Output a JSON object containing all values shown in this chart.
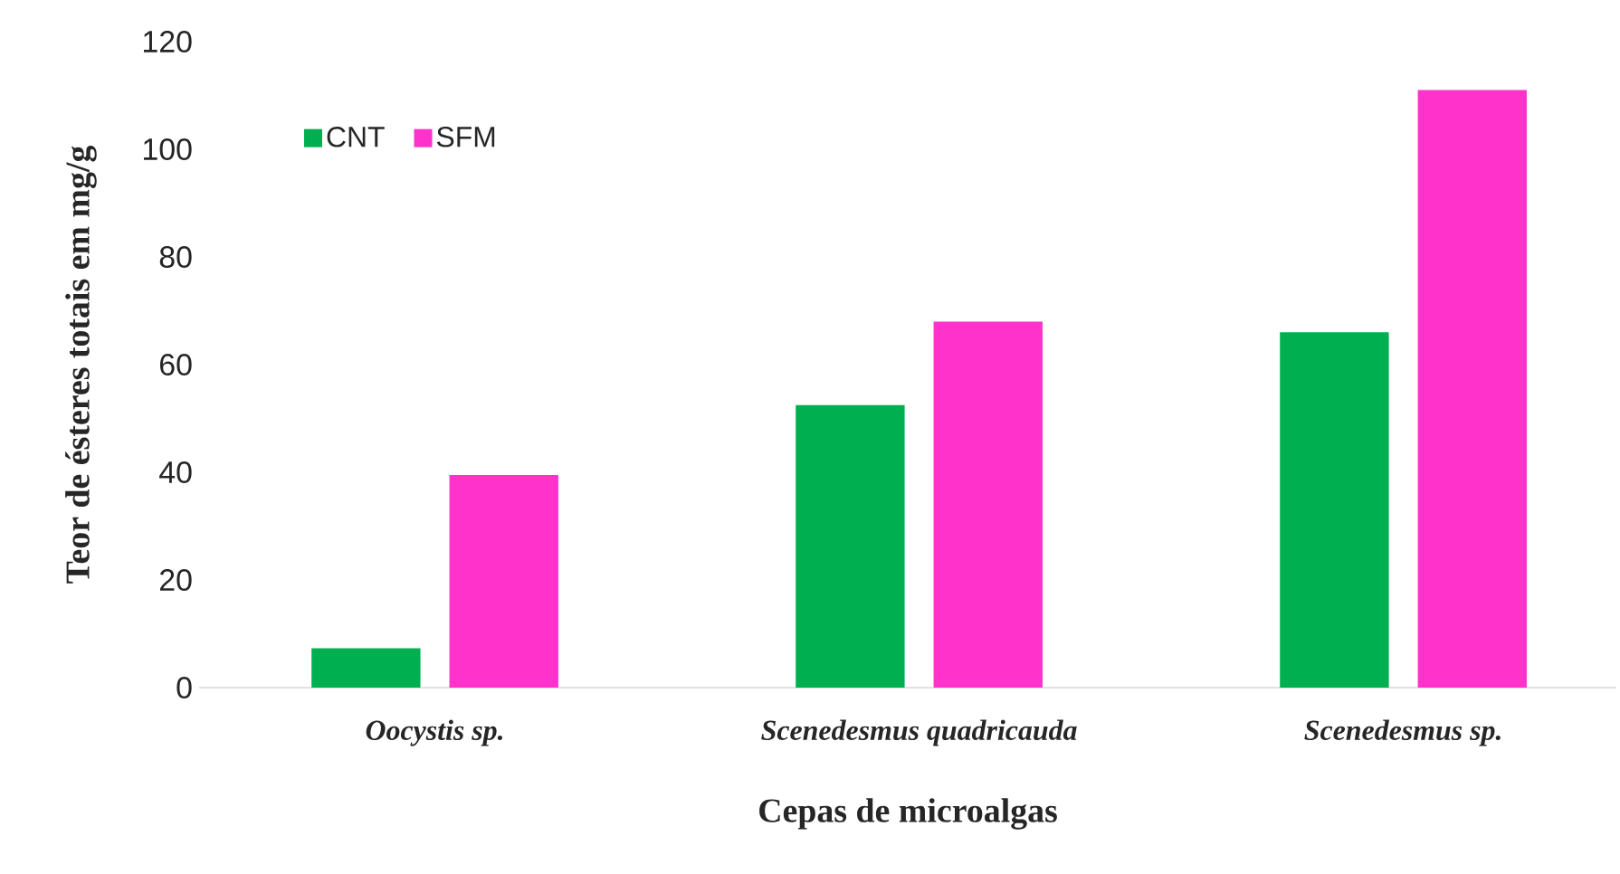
{
  "chart_data": {
    "type": "bar",
    "xlabel": "Cepas de microalgas",
    "ylabel": "Teor de ésteres totais em mg/g",
    "categories": [
      "Oocystis sp.",
      "Scenedesmus quadricauda",
      "Scenedesmus sp."
    ],
    "series": [
      {
        "name": "CNT",
        "color": "#00b050",
        "values": [
          7.3,
          52.5,
          66
        ]
      },
      {
        "name": "SFM",
        "color": "#ff33cc",
        "values": [
          39.5,
          68,
          111
        ]
      }
    ],
    "ylim": [
      0,
      120
    ],
    "yticks": [
      0,
      20,
      40,
      60,
      80,
      100,
      120
    ],
    "grid": false,
    "legend": "top left"
  }
}
